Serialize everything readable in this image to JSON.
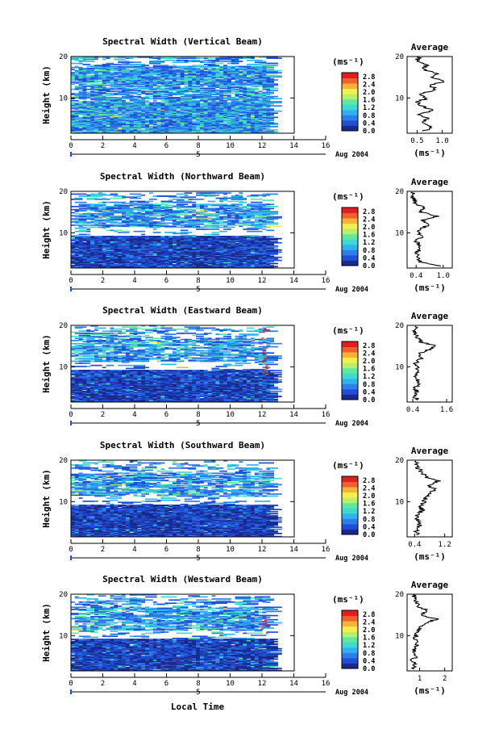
{
  "chart_data": [
    {
      "type": "heatmap",
      "title": "Spectral Width (Vertical Beam)",
      "ylabel": "Height (km)",
      "x_ticks": [
        "0",
        "2",
        "4",
        "6",
        "8",
        "10",
        "12",
        "14",
        "16"
      ],
      "y_ticks": [
        "20",
        "10"
      ],
      "xlim": [
        0,
        16
      ],
      "ylim": [
        1.5,
        20
      ],
      "data_xmax": 14,
      "date_label": "5",
      "date_suffix": "Aug 2004",
      "colorbar": {
        "label": "(ms⁻¹)",
        "ticks": [
          "2.8",
          "2.4",
          "2.0",
          "1.6",
          "1.2",
          "0.8",
          "0.4",
          "0.0"
        ]
      },
      "average": {
        "title": "Average",
        "xlabel": "(ms⁻¹)",
        "x_ticks": [
          "0.5",
          "1.0"
        ],
        "xlim": [
          0.3,
          1.2
        ],
        "y_ticks": [
          "20",
          "10"
        ],
        "profile": [
          [
            0.65,
            2
          ],
          [
            0.8,
            3
          ],
          [
            0.62,
            4
          ],
          [
            0.72,
            5
          ],
          [
            0.55,
            6
          ],
          [
            0.82,
            7
          ],
          [
            0.6,
            8
          ],
          [
            0.5,
            9
          ],
          [
            0.7,
            10
          ],
          [
            0.55,
            11
          ],
          [
            0.9,
            12
          ],
          [
            0.75,
            13
          ],
          [
            1.05,
            14
          ],
          [
            0.8,
            15
          ],
          [
            0.9,
            16
          ],
          [
            0.6,
            17
          ],
          [
            0.7,
            18
          ],
          [
            0.5,
            19
          ],
          [
            0.55,
            20
          ]
        ]
      }
    },
    {
      "type": "heatmap",
      "title": "Spectral Width (Northward Beam)",
      "ylabel": "Height (km)",
      "x_ticks": [
        "0",
        "2",
        "4",
        "6",
        "8",
        "10",
        "12",
        "14",
        "16"
      ],
      "y_ticks": [
        "20",
        "10"
      ],
      "xlim": [
        0,
        16
      ],
      "ylim": [
        1.5,
        20
      ],
      "data_xmax": 14,
      "date_label": "5",
      "date_suffix": "Aug 2004",
      "colorbar": {
        "label": "(ms⁻¹)",
        "ticks": [
          "2.8",
          "2.4",
          "2.0",
          "1.6",
          "1.2",
          "0.8",
          "0.4",
          "0.0"
        ]
      },
      "average": {
        "title": "Average",
        "xlabel": "(ms⁻¹)",
        "x_ticks": [
          "0.4",
          "1.0"
        ],
        "xlim": [
          0.2,
          1.2
        ],
        "y_ticks": [
          "20",
          "10"
        ],
        "profile": [
          [
            0.9,
            2
          ],
          [
            0.5,
            3
          ],
          [
            0.45,
            4
          ],
          [
            0.4,
            5
          ],
          [
            0.5,
            6
          ],
          [
            0.45,
            7
          ],
          [
            0.4,
            8
          ],
          [
            0.55,
            9
          ],
          [
            0.45,
            10
          ],
          [
            0.5,
            11
          ],
          [
            0.7,
            12
          ],
          [
            0.55,
            13
          ],
          [
            0.85,
            14
          ],
          [
            0.5,
            15
          ],
          [
            0.6,
            16
          ],
          [
            0.4,
            17
          ],
          [
            0.35,
            18
          ],
          [
            0.3,
            19
          ],
          [
            0.35,
            20
          ]
        ]
      }
    },
    {
      "type": "heatmap",
      "title": "Spectral Width (Eastward Beam)",
      "ylabel": "Height (km)",
      "x_ticks": [
        "0",
        "2",
        "4",
        "6",
        "8",
        "10",
        "12",
        "14",
        "16"
      ],
      "y_ticks": [
        "20",
        "10"
      ],
      "xlim": [
        0,
        16
      ],
      "ylim": [
        1.5,
        20
      ],
      "data_xmax": 14,
      "date_label": "5",
      "date_suffix": "Aug 2004",
      "colorbar": {
        "label": "(ms⁻¹)",
        "ticks": [
          "2.8",
          "2.4",
          "2.0",
          "1.6",
          "1.2",
          "0.8",
          "0.4",
          "0.0"
        ]
      },
      "average": {
        "title": "Average",
        "xlabel": "",
        "x_ticks": [
          "0.4",
          "1.6"
        ],
        "xlim": [
          0.2,
          1.8
        ],
        "y_ticks": [
          "20",
          "10"
        ],
        "profile": [
          [
            0.6,
            2
          ],
          [
            0.45,
            3
          ],
          [
            0.55,
            4
          ],
          [
            0.5,
            5
          ],
          [
            0.6,
            6
          ],
          [
            0.55,
            7
          ],
          [
            0.5,
            8
          ],
          [
            0.65,
            9
          ],
          [
            0.55,
            10
          ],
          [
            0.5,
            11
          ],
          [
            0.7,
            12
          ],
          [
            0.6,
            13
          ],
          [
            0.9,
            14
          ],
          [
            1.25,
            15
          ],
          [
            0.7,
            16
          ],
          [
            0.55,
            17
          ],
          [
            0.45,
            18
          ],
          [
            0.5,
            19
          ],
          [
            0.5,
            20
          ]
        ]
      }
    },
    {
      "type": "heatmap",
      "title": "Spectral Width (Southward Beam)",
      "ylabel": "Height (km)",
      "x_ticks": [
        "0",
        "2",
        "4",
        "6",
        "8",
        "10",
        "12",
        "14",
        "16"
      ],
      "y_ticks": [
        "20",
        "10"
      ],
      "xlim": [
        0,
        16
      ],
      "ylim": [
        1.5,
        20
      ],
      "data_xmax": 14,
      "date_label": "5",
      "date_suffix": "Aug 2004",
      "colorbar": {
        "label": "(ms⁻¹)",
        "ticks": [
          "2.8",
          "2.4",
          "2.0",
          "1.6",
          "1.2",
          "0.8",
          "0.4",
          "0.0"
        ]
      },
      "average": {
        "title": "Average",
        "xlabel": "(ms⁻¹)",
        "x_ticks": [
          "0.4",
          "1.2"
        ],
        "xlim": [
          0.2,
          1.4
        ],
        "y_ticks": [
          "20",
          "10"
        ],
        "profile": [
          [
            0.5,
            2
          ],
          [
            0.45,
            3
          ],
          [
            0.5,
            4
          ],
          [
            0.55,
            5
          ],
          [
            0.45,
            6
          ],
          [
            0.5,
            7
          ],
          [
            0.6,
            8
          ],
          [
            0.55,
            9
          ],
          [
            0.65,
            10
          ],
          [
            0.7,
            11
          ],
          [
            0.8,
            12
          ],
          [
            0.95,
            13
          ],
          [
            0.75,
            14
          ],
          [
            1.05,
            15
          ],
          [
            0.7,
            16
          ],
          [
            0.6,
            17
          ],
          [
            0.5,
            18
          ],
          [
            0.45,
            19
          ],
          [
            0.45,
            20
          ]
        ]
      }
    },
    {
      "type": "heatmap",
      "title": "Spectral Width (Westward Beam)",
      "ylabel": "Height (km)",
      "x_ticks": [
        "0",
        "2",
        "4",
        "6",
        "8",
        "10",
        "12",
        "14",
        "16"
      ],
      "y_ticks": [
        "20",
        "10"
      ],
      "xlim": [
        0,
        16
      ],
      "ylim": [
        1.5,
        20
      ],
      "data_xmax": 14,
      "date_label": "5",
      "date_suffix": "Aug 2004",
      "colorbar": {
        "label": "(ms⁻¹)",
        "ticks": [
          "2.8",
          "2.4",
          "2.0",
          "1.6",
          "1.2",
          "0.8",
          "0.4",
          "0.0"
        ]
      },
      "average": {
        "title": "Average",
        "xlabel": "(ms⁻¹)",
        "x_ticks": [
          "1",
          "2"
        ],
        "xlim": [
          0.5,
          2.3
        ],
        "y_ticks": [
          "20",
          "10"
        ],
        "profile": [
          [
            0.75,
            2
          ],
          [
            0.8,
            3
          ],
          [
            0.7,
            4
          ],
          [
            0.85,
            5
          ],
          [
            0.75,
            6
          ],
          [
            0.8,
            7
          ],
          [
            0.9,
            8
          ],
          [
            0.8,
            9
          ],
          [
            0.85,
            10
          ],
          [
            0.9,
            11
          ],
          [
            1.0,
            12
          ],
          [
            1.2,
            13
          ],
          [
            1.7,
            14
          ],
          [
            1.05,
            15
          ],
          [
            1.3,
            16
          ],
          [
            0.95,
            17
          ],
          [
            0.85,
            18
          ],
          [
            0.8,
            19
          ],
          [
            0.75,
            20
          ]
        ]
      }
    }
  ],
  "figure_xlabel": "Local Time"
}
